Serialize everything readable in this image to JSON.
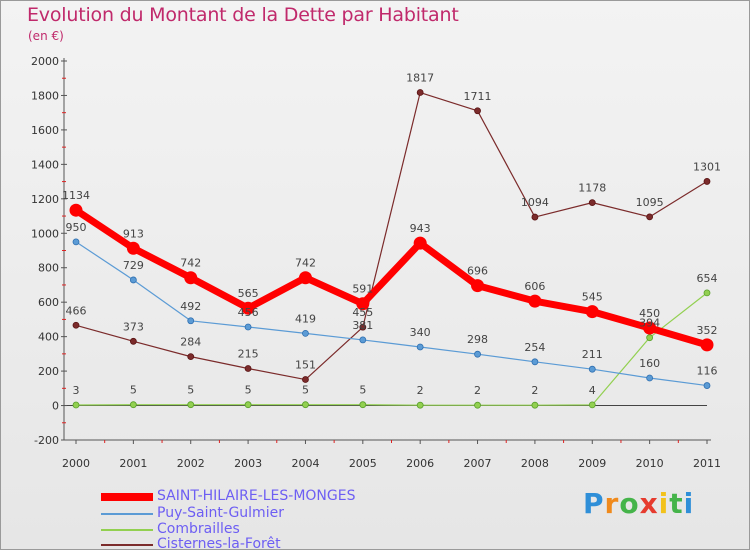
{
  "header": {
    "title": "Evolution du Montant de la Dette par Habitant",
    "unit": "(en €)"
  },
  "logo": {
    "letters": [
      "P",
      "r",
      "o",
      "x",
      "i",
      "t",
      "i"
    ],
    "colors": [
      "#2f8fd8",
      "#f08a1c",
      "#45b44a",
      "#e63b2e",
      "#f2c21b",
      "#45b44a",
      "#2f8fd8"
    ]
  },
  "chart_data": {
    "type": "line",
    "x": [
      "2000",
      "2001",
      "2002",
      "2003",
      "2004",
      "2005",
      "2006",
      "2007",
      "2008",
      "2009",
      "2010",
      "2011"
    ],
    "ylim": [
      -200,
      2000
    ],
    "yticks": [
      "-200",
      "0",
      "200",
      "400",
      "600",
      "800",
      "1000",
      "1200",
      "1400",
      "1600",
      "1800",
      "2000"
    ],
    "grid": false,
    "legend_position": "bottom-left",
    "series": [
      {
        "name": "SAINT-HILAIRE-LES-MONGES",
        "color": "#ff0000",
        "values": [
          1134,
          913,
          742,
          565,
          742,
          591,
          943,
          696,
          606,
          545,
          450,
          352
        ],
        "labels": [
          "1134",
          "913",
          "742",
          "565",
          "742",
          "591",
          "943",
          "696",
          "606",
          "545",
          "450",
          "352"
        ]
      },
      {
        "name": "Puy-Saint-Gulmier",
        "color": "#5b9bd5",
        "values": [
          950,
          729,
          492,
          456,
          419,
          381,
          340,
          298,
          254,
          211,
          160,
          116
        ],
        "labels": [
          "950",
          "729",
          "492",
          "456",
          "419",
          "381",
          "340",
          "298",
          "254",
          "211",
          "160",
          "116"
        ]
      },
      {
        "name": "Combrailles",
        "color": "#92d050",
        "values": [
          3,
          5,
          5,
          5,
          5,
          5,
          2,
          2,
          2,
          4,
          394,
          654
        ],
        "labels": [
          "3",
          "5",
          "5",
          "5",
          "5",
          "5",
          "2",
          "2",
          "2",
          "4",
          "394",
          "654"
        ]
      },
      {
        "name": "Cisternes-la-Forêt",
        "color": "#7b2b2b",
        "values": [
          466,
          373,
          284,
          215,
          151,
          455,
          1817,
          1711,
          1094,
          1178,
          1095,
          1301
        ],
        "labels": [
          "466",
          "373",
          "284",
          "215",
          "151",
          "455",
          "1817",
          "1711",
          "1094",
          "1178",
          "1095",
          "1301"
        ]
      }
    ]
  }
}
